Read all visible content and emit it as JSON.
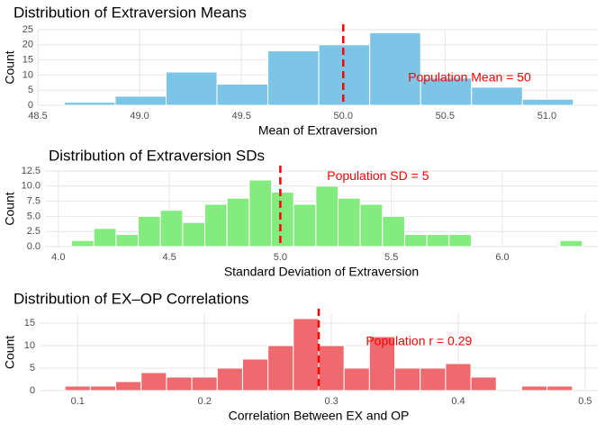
{
  "chart_data": [
    {
      "type": "histogram",
      "title": "Distribution of Extraversion Means",
      "x_label": "Mean of Extraversion",
      "y_label": "Count",
      "bins": [
        48.63,
        48.88,
        49.13,
        49.38,
        49.63,
        49.88,
        50.13,
        50.38,
        50.63,
        50.88,
        51.13
      ],
      "values": [
        1,
        3,
        11,
        7,
        18,
        20,
        24,
        9,
        6,
        2
      ],
      "color": "#7cc5e6",
      "xlim": [
        48.5,
        51.25
      ],
      "xticks": [
        48.5,
        {
          "value": 49,
          "label": "49.0"
        },
        49.5,
        {
          "value": 50,
          "label": "50.0"
        },
        50.5,
        {
          "value": 51,
          "label": "51.0"
        }
      ],
      "ylim": [
        0,
        25
      ],
      "yticks": [
        0,
        5,
        10,
        15,
        20,
        25
      ],
      "grid": true,
      "reference_line": {
        "value": 50,
        "color": "#ff0000"
      },
      "annotation": {
        "text": "Population Mean = 50",
        "x": 50.62,
        "y": 9
      }
    },
    {
      "type": "histogram",
      "title": "Distribution of Extraversion SDs",
      "x_label": "Standard Deviation of Extraversion",
      "y_label": "Count",
      "bins": [
        4.06,
        4.16,
        4.26,
        4.36,
        4.46,
        4.56,
        4.66,
        4.76,
        4.86,
        4.96,
        5.06,
        5.16,
        5.26,
        5.36,
        5.46,
        5.56,
        5.66,
        5.76,
        5.86,
        5.96,
        6.06,
        6.16,
        6.26,
        6.36
      ],
      "values": [
        1,
        3,
        2,
        5,
        6,
        4,
        7,
        8,
        11,
        9,
        7,
        10,
        8,
        7,
        5,
        2,
        2,
        2,
        0,
        0,
        0,
        0,
        1
      ],
      "color": "#84ec7e",
      "xlim": [
        3.94,
        6.43
      ],
      "xticks": [
        {
          "value": 4,
          "label": "4.0"
        },
        4.5,
        {
          "value": 5,
          "label": "5.0"
        },
        5.5,
        {
          "value": 6,
          "label": "6.0"
        }
      ],
      "ylim": [
        0,
        12.5
      ],
      "yticks": [
        {
          "value": 0,
          "label": "0.0"
        },
        2.5,
        {
          "value": 5,
          "label": "5.0"
        },
        7.5,
        {
          "value": 10,
          "label": "10.0"
        },
        12.5
      ],
      "grid": true,
      "reference_line": {
        "value": 5,
        "color": "#ff0000"
      },
      "annotation": {
        "text": "Population SD = 5",
        "x": 5.44,
        "y": 11.6
      }
    },
    {
      "type": "histogram",
      "title": "Distribution of EX–OP Correlations",
      "x_label": "Correlation Between EX and OP",
      "y_label": "Count",
      "bins": [
        0.09,
        0.11,
        0.13,
        0.15,
        0.17,
        0.19,
        0.21,
        0.23,
        0.25,
        0.27,
        0.29,
        0.31,
        0.33,
        0.35,
        0.37,
        0.39,
        0.41,
        0.43,
        0.45,
        0.47,
        0.49
      ],
      "values": [
        1,
        1,
        2,
        4,
        3,
        3,
        5,
        7,
        10,
        16,
        10,
        5,
        12,
        5,
        5,
        6,
        3,
        0,
        1,
        1
      ],
      "color": "#ee6a6f",
      "xlim": [
        0.07,
        0.51
      ],
      "xticks": [
        0.1,
        0.2,
        0.3,
        0.4,
        0.5
      ],
      "ylim": [
        0,
        17
      ],
      "yticks": [
        0,
        5,
        10,
        15
      ],
      "grid": true,
      "reference_line": {
        "value": 0.29,
        "color": "#ff0000"
      },
      "annotation": {
        "text": "Population r = 0.29",
        "x": 0.369,
        "y": 10.8
      }
    }
  ]
}
